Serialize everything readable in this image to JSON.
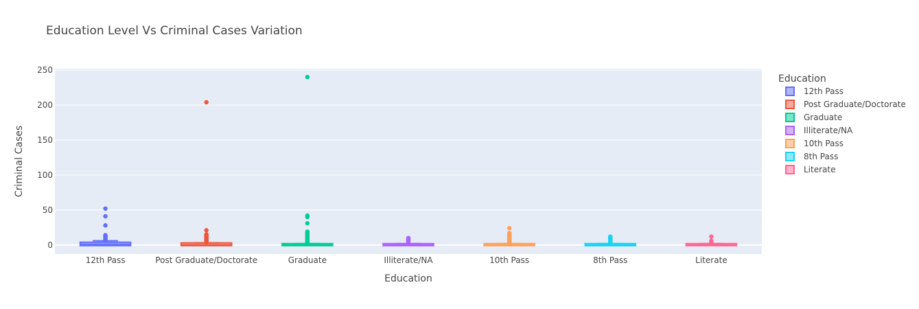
{
  "chart_data": {
    "type": "box",
    "title": "Education Level Vs Criminal Cases Variation",
    "xlabel": "Education",
    "ylabel": "Criminal Cases",
    "ylim": [
      -13,
      252
    ],
    "y_ticks": [
      0,
      50,
      100,
      150,
      200,
      250
    ],
    "grid": true,
    "plot_background": "#e5ecf6",
    "legend": {
      "title": "Education",
      "position": "right"
    },
    "categories": [
      "12th Pass",
      "Post Graduate/Doctorate",
      "Graduate",
      "Illiterate/NA",
      "10th Pass",
      "8th Pass",
      "Literate"
    ],
    "series": [
      {
        "name": "12th Pass",
        "color": "#636efa",
        "box": {
          "lower_fence": 0,
          "q1": 0,
          "median": 1,
          "q3": 3,
          "upper_fence": 6
        },
        "outliers": [
          7,
          8,
          9,
          10,
          11,
          12,
          13,
          14,
          28,
          41,
          52
        ]
      },
      {
        "name": "Post Graduate/Doctorate",
        "color": "#ef553b",
        "box": {
          "lower_fence": 0,
          "q1": 0,
          "median": 0,
          "q3": 2,
          "upper_fence": 3
        },
        "outliers": [
          4,
          5,
          6,
          7,
          8,
          9,
          10,
          11,
          12,
          13,
          14,
          15,
          21,
          204
        ]
      },
      {
        "name": "Graduate",
        "color": "#00cc96",
        "box": {
          "lower_fence": 0,
          "q1": 0,
          "median": 0,
          "q3": 1,
          "upper_fence": 2
        },
        "outliers": [
          3,
          4,
          5,
          6,
          7,
          8,
          9,
          10,
          11,
          12,
          13,
          14,
          15,
          16,
          17,
          18,
          19,
          31,
          40,
          42,
          240
        ]
      },
      {
        "name": "Illiterate/NA",
        "color": "#ab63fa",
        "box": {
          "lower_fence": 0,
          "q1": 0,
          "median": 0,
          "q3": 1,
          "upper_fence": 2
        },
        "outliers": [
          3,
          4,
          5,
          6,
          7,
          8,
          9,
          10
        ]
      },
      {
        "name": "10th Pass",
        "color": "#ffa15a",
        "box": {
          "lower_fence": 0,
          "q1": 0,
          "median": 0,
          "q3": 1,
          "upper_fence": 2
        },
        "outliers": [
          3,
          4,
          5,
          6,
          7,
          8,
          9,
          10,
          11,
          12,
          13,
          14,
          15,
          16,
          17,
          24
        ]
      },
      {
        "name": "8th Pass",
        "color": "#19d3f3",
        "box": {
          "lower_fence": 0,
          "q1": 0,
          "median": 0,
          "q3": 1,
          "upper_fence": 2
        },
        "outliers": [
          3,
          4,
          5,
          6,
          7,
          8,
          9,
          10,
          11,
          12
        ]
      },
      {
        "name": "Literate",
        "color": "#ff6692",
        "box": {
          "lower_fence": 0,
          "q1": 0,
          "median": 0,
          "q3": 1,
          "upper_fence": 2
        },
        "outliers": [
          3,
          4,
          5,
          6,
          12
        ]
      }
    ]
  }
}
